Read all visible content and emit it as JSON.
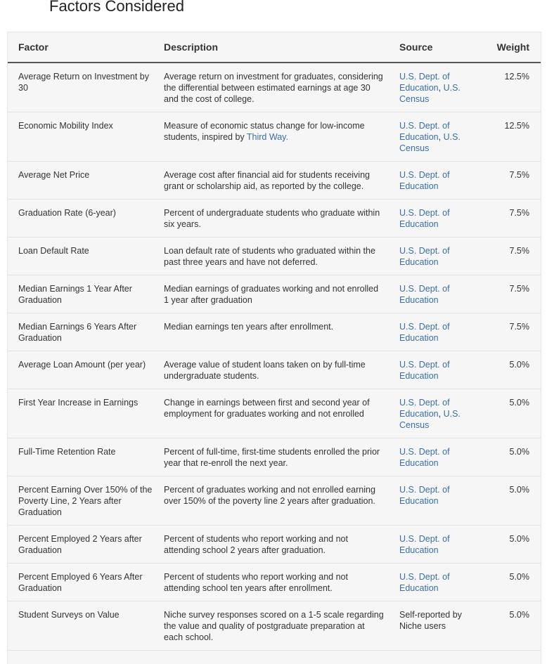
{
  "heading": "Factors Considered",
  "headers": {
    "factor": "Factor",
    "description": "Description",
    "source": "Source",
    "weight": "Weight"
  },
  "rows": [
    {
      "factor": "Average Return on Investment by 30",
      "description": "Average return on investment for graduates, considering the differential between estimated earnings at age 30 and the cost of college.",
      "source": [
        "U.S. Dept. of Education",
        "U.S. Census"
      ],
      "weight": "12.5%"
    },
    {
      "factor": "Economic Mobility Index",
      "description": "Measure of economic status change for low-income students, inspired by ",
      "description_link": "Third Way.",
      "source": [
        "U.S. Dept. of Education",
        "U.S. Census"
      ],
      "weight": "12.5%"
    },
    {
      "factor": "Average Net Price",
      "description": "Average cost after financial aid for students receiving grant or scholarship aid, as reported by the college.",
      "source": [
        "U.S. Dept. of Education"
      ],
      "weight": "7.5%"
    },
    {
      "factor": "Graduation Rate (6-year)",
      "description": "Percent of undergraduate students who graduate within six years.",
      "source": [
        "U.S. Dept. of Education"
      ],
      "weight": "7.5%"
    },
    {
      "factor": "Loan Default Rate",
      "description": "Loan default rate of students who graduated within the past three years and have not deferred.",
      "source": [
        "U.S. Dept. of Education"
      ],
      "weight": "7.5%"
    },
    {
      "factor": "Median Earnings 1 Year After Graduation",
      "description": "Median earnings of graduates working and not enrolled 1 year after graduation",
      "source": [
        "U.S. Dept. of Education"
      ],
      "weight": "7.5%"
    },
    {
      "factor": "Median Earnings 6 Years After Graduation",
      "description": "Median earnings ten years after enrollment.",
      "source": [
        "U.S. Dept. of Education"
      ],
      "weight": "7.5%"
    },
    {
      "factor": "Average Loan Amount (per year)",
      "description": "Average value of student loans taken on by full-time undergraduate students.",
      "source": [
        "U.S. Dept. of Education"
      ],
      "weight": "5.0%"
    },
    {
      "factor": "First Year Increase in Earnings",
      "description": "Change in earnings between first and second year of employment for graduates working and not enrolled",
      "source": [
        "U.S. Dept. of Education",
        "U.S. Census"
      ],
      "weight": "5.0%"
    },
    {
      "factor": "Full-Time Retention Rate",
      "description": "Percent of full-time, first-time students enrolled the prior year that re-enroll the next year.",
      "source": [
        "U.S. Dept. of Education"
      ],
      "weight": "5.0%"
    },
    {
      "factor": "Percent Earning Over 150% of the Poverty Line, 2 Years after Graduation",
      "description": "Percent of graduates working and not enrolled earning over 150% of the poverty line 2 years after graduation.",
      "source": [
        "U.S. Dept. of Education"
      ],
      "weight": "5.0%"
    },
    {
      "factor": "Percent Employed 2 Years after Graduation",
      "description": "Percent of students who report working and not attending school 2 years after graduation.",
      "source": [
        "U.S. Dept. of Education"
      ],
      "weight": "5.0%"
    },
    {
      "factor": "Percent Employed 6 Years After Graduation",
      "description": "Percent of students who report working and not attending school ten years after enrollment.",
      "source": [
        "U.S. Dept. of Education"
      ],
      "weight": "5.0%"
    },
    {
      "factor": "Student Surveys on Value",
      "description": "Niche survey responses scored on a 1-5 scale regarding the value and quality of postgraduate preparation at each school.",
      "source_text": "Self-reported by Niche users",
      "weight": "5.0%"
    }
  ]
}
